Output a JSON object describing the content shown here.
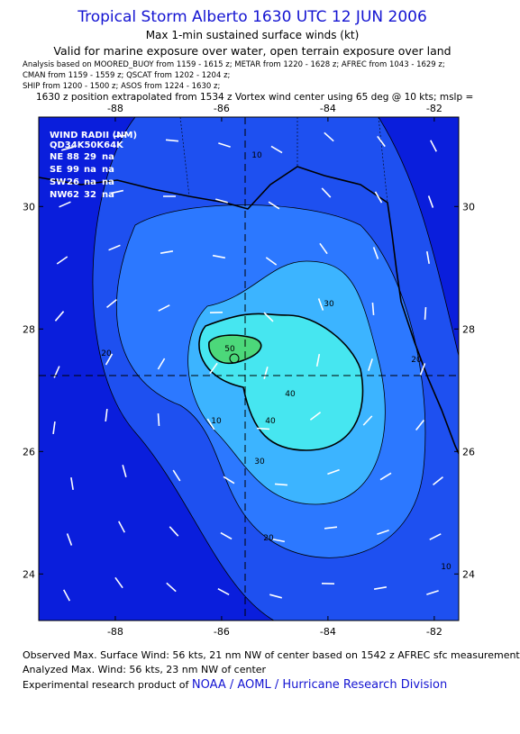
{
  "header": {
    "title": "Tropical Storm Alberto 1630 UTC 12 JUN 2006",
    "subtitle": "Max 1-min sustained surface winds (kt)",
    "valid": "Valid for marine exposure over water, open terrain exposure over land",
    "analysis": [
      "Analysis based on  MOORED_BUOY from 1159 - 1615 z;  METAR from 1220 - 1628 z;  AFREC from 1043 - 1629 z;",
      "CMAN from 1159 - 1559 z;  QSCAT from 1202 - 1204 z;",
      "SHIP from 1200 - 1500 z;  ASOS from 1224 - 1630 z;"
    ],
    "position_note": "1630 z position extrapolated from 1534 z Vortex wind center using 65 deg @ 10 kts; mslp ="
  },
  "chart_data": {
    "type": "map",
    "xlim": [
      -89.44,
      -81.54
    ],
    "ylim": [
      23.24,
      31.46
    ],
    "xticks": [
      -88,
      -86,
      -84,
      -82
    ],
    "yticks": [
      24,
      26,
      28,
      30
    ]
  },
  "contour_labels": [
    10,
    10,
    20,
    20,
    20,
    30,
    30,
    40,
    40,
    50,
    10
  ],
  "wind_radii": {
    "title": "WIND RADII (NM)",
    "header": "QD34K50K64K",
    "rows": [
      [
        "NE",
        "88",
        "29",
        "na"
      ],
      [
        "SE",
        "99",
        "na",
        "na"
      ],
      [
        "SW",
        "26",
        "na",
        "na"
      ],
      [
        "NW",
        "62",
        "32",
        "na"
      ]
    ]
  },
  "footer": {
    "observed": "Observed Max. Surface Wind: 56 kts, 21 nm NW of center based on 1542 z AFREC sfc measurement",
    "analyzed": "Analyzed Max. Wind: 56 kts, 23 nm NW of center",
    "credit": "Experimental research product of",
    "credit_link": "NOAA / AOML / Hurricane Research Division"
  }
}
